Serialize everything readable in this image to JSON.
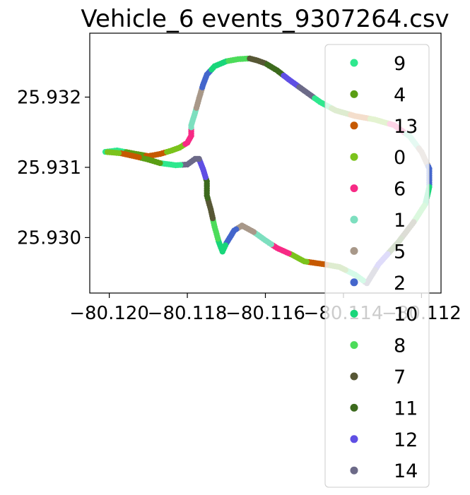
{
  "chart_data": {
    "type": "scatter",
    "title": "Vehicle_6 events_9307264.csv",
    "xlabel": "",
    "ylabel": "",
    "xlim": [
      -80.1205,
      -80.1115
    ],
    "ylim": [
      25.92921,
      25.93291
    ],
    "x_ticks": [
      -80.12,
      -80.118,
      -80.116,
      -80.114,
      -80.112
    ],
    "x_tick_labels": [
      "−80.120",
      "−80.118",
      "−80.116",
      "−80.114",
      "−80.112"
    ],
    "y_ticks": [
      25.93,
      25.931,
      25.932
    ],
    "y_tick_labels": [
      "25.930",
      "25.931",
      "25.932"
    ],
    "grid": false,
    "legend_position": "right",
    "path": [
      [
        -80.1201,
        25.93122
      ],
      [
        -80.1198,
        25.93124
      ],
      [
        -80.1195,
        25.93121
      ],
      [
        -80.1192,
        25.93118
      ],
      [
        -80.119,
        25.93116
      ],
      [
        -80.1187,
        25.93119
      ],
      [
        -80.1184,
        25.93124
      ],
      [
        -80.1182,
        25.93128
      ],
      [
        -80.118,
        25.93135
      ],
      [
        -80.1179,
        25.93145
      ],
      [
        -80.1179,
        25.9316
      ],
      [
        -80.1178,
        25.93178
      ],
      [
        -80.1177,
        25.93198
      ],
      [
        -80.1176,
        25.93217
      ],
      [
        -80.1175,
        25.93232
      ],
      [
        -80.1173,
        25.93244
      ],
      [
        -80.117,
        25.93251
      ],
      [
        -80.1167,
        25.93254
      ],
      [
        -80.1164,
        25.93255
      ],
      [
        -80.1162,
        25.93252
      ],
      [
        -80.116,
        25.93248
      ],
      [
        -80.1157,
        25.93238
      ],
      [
        -80.1154,
        25.93225
      ],
      [
        -80.115,
        25.93209
      ],
      [
        -80.1146,
        25.93193
      ],
      [
        -80.1142,
        25.93181
      ],
      [
        -80.1137,
        25.93173
      ],
      [
        -80.1132,
        25.93168
      ],
      [
        -80.1127,
        25.9316
      ],
      [
        -80.1123,
        25.93144
      ],
      [
        -80.112,
        25.93122
      ],
      [
        -80.1118,
        25.93098
      ],
      [
        -80.1118,
        25.93072
      ],
      [
        -80.1119,
        25.93048
      ],
      [
        -80.1122,
        25.93022
      ],
      [
        -80.1126,
        25.92993
      ],
      [
        -80.1131,
        25.92962
      ],
      [
        -80.1134,
        25.92935
      ],
      [
        -80.1137,
        25.92947
      ],
      [
        -80.1141,
        25.92958
      ],
      [
        -80.1145,
        25.92962
      ],
      [
        -80.115,
        25.92966
      ],
      [
        -80.1153,
        25.92975
      ],
      [
        -80.1157,
        25.92985
      ],
      [
        -80.116,
        25.92996
      ],
      [
        -80.1163,
        25.93008
      ],
      [
        -80.1166,
        25.93017
      ],
      [
        -80.1168,
        25.9301
      ],
      [
        -80.117,
        25.92992
      ],
      [
        -80.1171,
        25.9298
      ],
      [
        -80.1172,
        25.92995
      ],
      [
        -80.1173,
        25.93015
      ],
      [
        -80.1174,
        25.9304
      ],
      [
        -80.1175,
        25.9306
      ],
      [
        -80.1175,
        25.9308
      ],
      [
        -80.1176,
        25.93098
      ],
      [
        -80.1177,
        25.93112
      ],
      [
        -80.1178,
        25.93112
      ],
      [
        -80.118,
        25.93104
      ],
      [
        -80.1183,
        25.93103
      ],
      [
        -80.1187,
        25.93106
      ],
      [
        -80.119,
        25.93111
      ],
      [
        -80.1193,
        25.93115
      ],
      [
        -80.1197,
        25.9312
      ],
      [
        -80.1201,
        25.93122
      ]
    ],
    "series": [
      {
        "name": "9",
        "color": "#2ee88e"
      },
      {
        "name": "4",
        "color": "#5a9e14"
      },
      {
        "name": "13",
        "color": "#c65900"
      },
      {
        "name": "0",
        "color": "#7bc31c"
      },
      {
        "name": "6",
        "color": "#f72a85"
      },
      {
        "name": "1",
        "color": "#7ddfbf"
      },
      {
        "name": "5",
        "color": "#a89889"
      },
      {
        "name": "2",
        "color": "#4466cc"
      },
      {
        "name": "10",
        "color": "#19d67a"
      },
      {
        "name": "8",
        "color": "#4cdc5a"
      },
      {
        "name": "7",
        "color": "#575735"
      },
      {
        "name": "11",
        "color": "#3c6a1d"
      },
      {
        "name": "12",
        "color": "#5f4fe4"
      },
      {
        "name": "14",
        "color": "#6c6a88"
      }
    ]
  }
}
